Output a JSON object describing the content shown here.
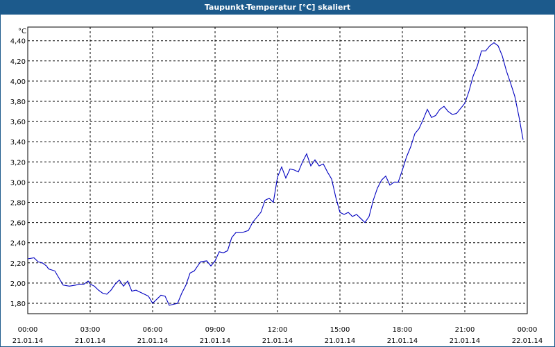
{
  "window": {
    "title": "Taupunkt-Temperatur [°C] skaliert"
  },
  "colors": {
    "titlebar": "#1c5a8c",
    "line": "#0000c0",
    "grid": "#000000"
  },
  "chart_data": {
    "type": "line",
    "title": "Taupunkt-Temperatur [°C] skaliert",
    "ylabel": "°C",
    "ylim": [
      1.65,
      4.45
    ],
    "grid": true,
    "y_ticks": [
      "1,80",
      "2,00",
      "2,20",
      "2,40",
      "2,60",
      "2,80",
      "3,00",
      "3,20",
      "3,40",
      "3,60",
      "3,80",
      "4,00",
      "4,20",
      "4,40"
    ],
    "y_tick_values": [
      1.8,
      2.0,
      2.2,
      2.4,
      2.6,
      2.8,
      3.0,
      3.2,
      3.4,
      3.6,
      3.8,
      4.0,
      4.2,
      4.4
    ],
    "x_ticks": [
      {
        "time": "00:00",
        "date": "21.01.14"
      },
      {
        "time": "03:00",
        "date": "21.01.14"
      },
      {
        "time": "06:00",
        "date": "21.01.14"
      },
      {
        "time": "09:00",
        "date": "21.01.14"
      },
      {
        "time": "12:00",
        "date": "21.01.14"
      },
      {
        "time": "15:00",
        "date": "21.01.14"
      },
      {
        "time": "18:00",
        "date": "21.01.14"
      },
      {
        "time": "21:00",
        "date": "21.01.14"
      },
      {
        "time": "00:00",
        "date": "22.01.14"
      }
    ],
    "x_tick_values": [
      0,
      3,
      6,
      9,
      12,
      15,
      18,
      21,
      24
    ],
    "xlim": [
      0,
      24
    ],
    "series": [
      {
        "x": [
          0,
          0.3,
          0.5,
          0.7,
          0.9,
          1.0,
          1.3,
          1.5,
          1.7,
          2.0,
          2.3,
          2.5,
          2.7,
          2.9,
          3.0,
          3.2,
          3.4,
          3.6,
          3.8,
          3.9,
          4.0,
          4.2,
          4.4,
          4.6,
          4.8,
          5.0,
          5.2,
          5.4,
          5.6,
          5.8,
          6.0,
          6.2,
          6.4,
          6.6,
          6.8,
          7.0,
          7.2,
          7.4,
          7.6,
          7.8,
          8.0,
          8.3,
          8.6,
          8.8,
          9.0,
          9.2,
          9.4,
          9.6,
          9.8,
          10.0,
          10.3,
          10.6,
          10.8,
          11.0,
          11.2,
          11.4,
          11.6,
          11.8,
          12.0,
          12.2,
          12.4,
          12.6,
          12.8,
          13.0,
          13.2,
          13.4,
          13.6,
          13.8,
          14.0,
          14.2,
          14.4,
          14.6,
          14.8,
          15.0,
          15.2,
          15.4,
          15.6,
          15.8,
          16.0,
          16.2,
          16.4,
          16.6,
          16.8,
          17.0,
          17.2,
          17.4,
          17.6,
          17.8,
          18.0,
          18.2,
          18.4,
          18.6,
          18.8,
          19.0,
          19.2,
          19.4,
          19.6,
          19.8,
          20.0,
          20.2,
          20.4,
          20.6,
          20.8,
          21.0,
          21.2,
          21.4,
          21.6,
          21.8,
          22.0,
          22.2,
          22.4,
          22.6,
          22.8,
          23.0,
          23.2,
          23.4,
          23.6,
          23.8
        ],
        "y": [
          2.24,
          2.25,
          2.21,
          2.2,
          2.17,
          2.14,
          2.12,
          2.05,
          1.98,
          1.97,
          1.98,
          1.99,
          1.99,
          2.02,
          1.99,
          1.97,
          1.93,
          1.9,
          1.89,
          1.91,
          1.93,
          1.99,
          2.03,
          1.97,
          2.02,
          1.92,
          1.93,
          1.91,
          1.89,
          1.87,
          1.8,
          1.84,
          1.88,
          1.87,
          1.78,
          1.79,
          1.8,
          1.9,
          1.98,
          2.1,
          2.12,
          2.21,
          2.22,
          2.17,
          2.22,
          2.31,
          2.3,
          2.32,
          2.45,
          2.5,
          2.5,
          2.52,
          2.6,
          2.65,
          2.7,
          2.82,
          2.84,
          2.8,
          3.05,
          3.15,
          3.04,
          3.13,
          3.12,
          3.1,
          3.2,
          3.28,
          3.16,
          3.22,
          3.16,
          3.18,
          3.1,
          3.03,
          2.85,
          2.7,
          2.68,
          2.7,
          2.66,
          2.68,
          2.64,
          2.6,
          2.66,
          2.82,
          2.94,
          3.02,
          3.06,
          2.97,
          3.0,
          3.0,
          3.12,
          3.25,
          3.35,
          3.48,
          3.53,
          3.62,
          3.72,
          3.64,
          3.66,
          3.72,
          3.75,
          3.7,
          3.67,
          3.68,
          3.73,
          3.78,
          3.9,
          4.05,
          4.15,
          4.3,
          4.3,
          4.35,
          4.38,
          4.35,
          4.25,
          4.1,
          3.98,
          3.85,
          3.65,
          3.42
        ]
      }
    ]
  }
}
